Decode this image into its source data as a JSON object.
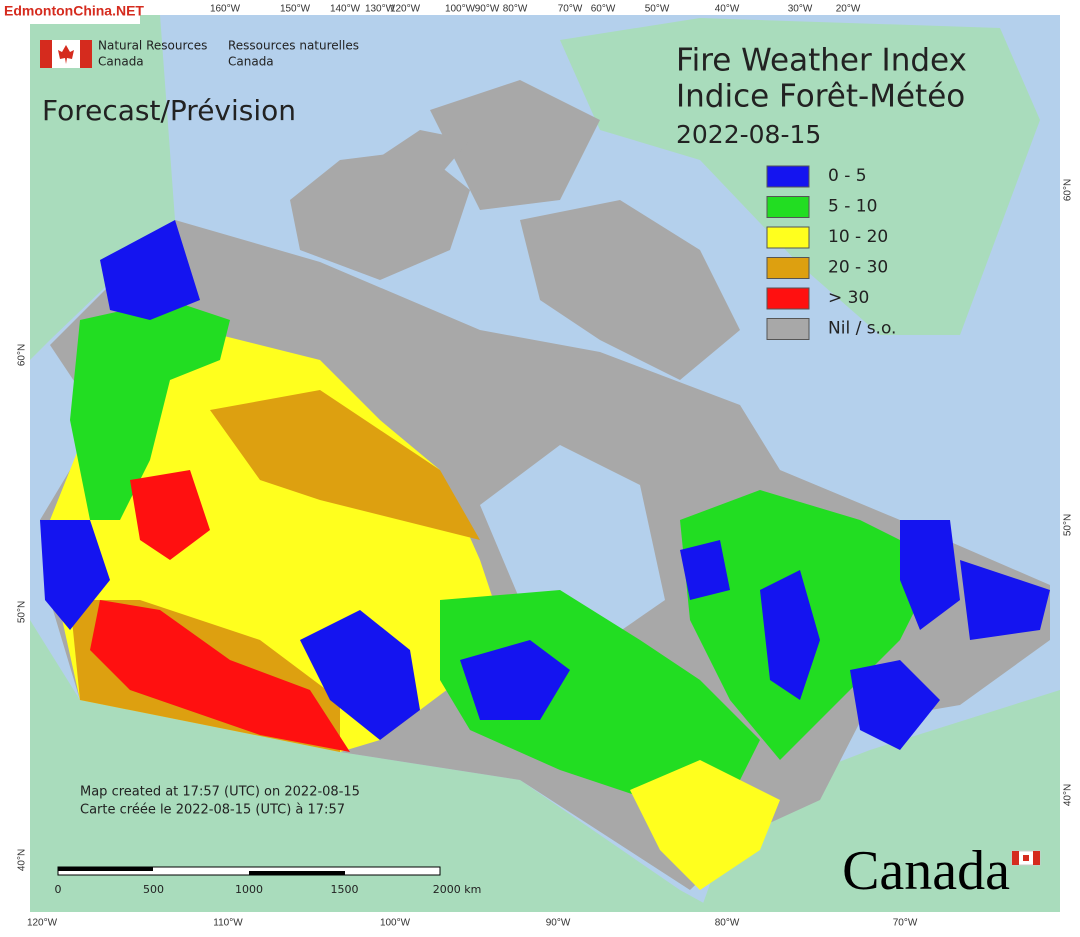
{
  "watermark": "EdmontonChina.NET",
  "agency": {
    "en": [
      "Natural Resources",
      "Canada"
    ],
    "fr": [
      "Ressources naturelles",
      "Canada"
    ]
  },
  "subtitle": "Forecast/Prévision",
  "title": [
    "Fire Weather Index",
    "Indice Forêt-Météo"
  ],
  "date": "2022-08-15",
  "legend": [
    {
      "label": "0 - 5",
      "color": "#1414f0"
    },
    {
      "label": "5 - 10",
      "color": "#22dd22"
    },
    {
      "label": "10 - 20",
      "color": "#ffff1e"
    },
    {
      "label": "20 - 30",
      "color": "#dda010"
    },
    {
      "label": "> 30",
      "color": "#ff1010"
    },
    {
      "label": "Nil / s.o.",
      "color": "#a8a8a8"
    }
  ],
  "graticule": {
    "top": [
      "160°W",
      "150°W",
      "140°W",
      "130°W",
      "120°W",
      "100°W",
      "90°W",
      "80°W",
      "70°W",
      "60°W",
      "50°W",
      "40°W",
      "30°W",
      "20°W"
    ],
    "bottom": [
      "120°W",
      "110°W",
      "100°W",
      "90°W",
      "80°W",
      "70°W"
    ],
    "left": [
      "60°N",
      "50°N",
      "40°N"
    ],
    "right": [
      "60°N",
      "50°N",
      "40°N"
    ]
  },
  "notes": [
    "Map created at 17:57 (UTC) on 2022-08-15",
    "Carte créée le 2022-08-15 (UTC) à 17:57"
  ],
  "scale_bar": [
    "0",
    "500",
    "1000",
    "1500",
    "2000 km"
  ],
  "wordmark": "Canada"
}
